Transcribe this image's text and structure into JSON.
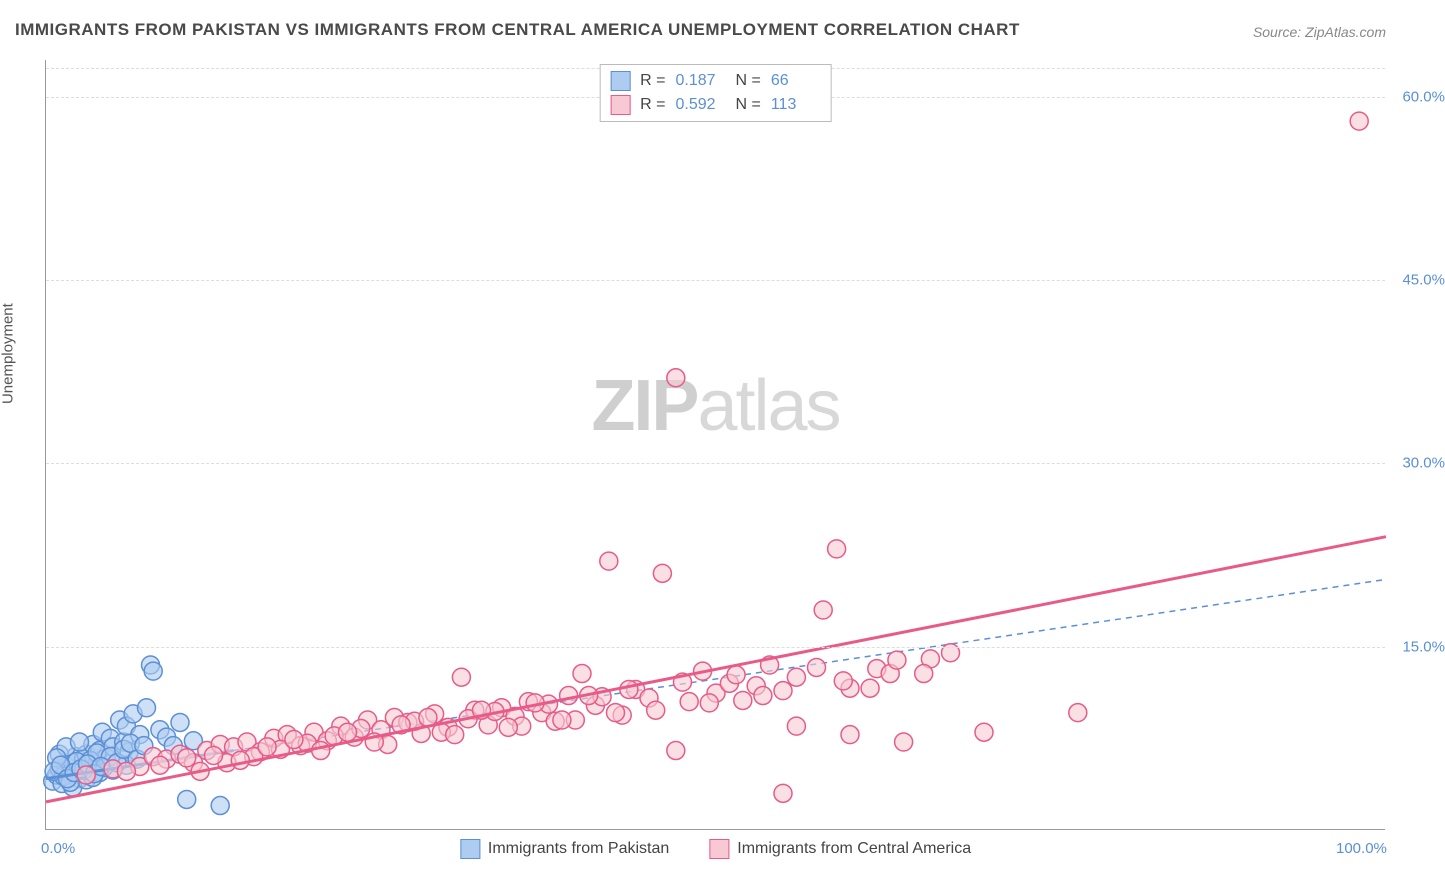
{
  "title": "IMMIGRANTS FROM PAKISTAN VS IMMIGRANTS FROM CENTRAL AMERICA UNEMPLOYMENT CORRELATION CHART",
  "source": "Source: ZipAtlas.com",
  "yaxis_label": "Unemployment",
  "watermark_zip": "ZIP",
  "watermark_atlas": "atlas",
  "chart": {
    "type": "scatter",
    "xlim": [
      0,
      100
    ],
    "ylim": [
      0,
      63
    ],
    "xticks": [
      {
        "value": 0,
        "label": "0.0%"
      },
      {
        "value": 100,
        "label": "100.0%"
      }
    ],
    "yticks": [
      {
        "value": 15,
        "label": "15.0%"
      },
      {
        "value": 30,
        "label": "30.0%"
      },
      {
        "value": 45,
        "label": "45.0%"
      },
      {
        "value": 60,
        "label": "60.0%"
      }
    ],
    "grid_color": "#dddddd",
    "background_color": "#ffffff",
    "marker_radius": 9,
    "marker_stroke_width": 1.5,
    "line_width_solid": 3,
    "line_width_dashed": 1.5,
    "series": [
      {
        "name": "Immigrants from Pakistan",
        "fill_color": "#aecbf0",
        "stroke_color": "#5b8fd6",
        "fill_opacity": 0.6,
        "R": "0.187",
        "N": "66",
        "trend_solid": {
          "x1": 0,
          "y1": 4.2,
          "x2": 14,
          "y2": 6.5
        },
        "trend_dashed": {
          "x1": 14,
          "y1": 6.5,
          "x2": 100,
          "y2": 20.5
        },
        "points": [
          [
            0.5,
            4
          ],
          [
            0.8,
            4.5
          ],
          [
            1,
            5
          ],
          [
            1.2,
            3.8
          ],
          [
            1.5,
            5.2
          ],
          [
            1.8,
            4.6
          ],
          [
            2,
            5.5
          ],
          [
            2.2,
            6
          ],
          [
            2.5,
            4.2
          ],
          [
            2.8,
            5.8
          ],
          [
            3,
            6.2
          ],
          [
            3.2,
            4.8
          ],
          [
            3.5,
            7
          ],
          [
            3.8,
            5.4
          ],
          [
            4,
            6.5
          ],
          [
            4.2,
            8
          ],
          [
            4.5,
            5.9
          ],
          [
            4.8,
            7.5
          ],
          [
            5,
            6.8
          ],
          [
            5.5,
            9
          ],
          [
            5.8,
            7.2
          ],
          [
            6,
            8.5
          ],
          [
            6.2,
            6.4
          ],
          [
            6.5,
            9.5
          ],
          [
            7,
            7.8
          ],
          [
            7.5,
            10
          ],
          [
            7.8,
            13.5
          ],
          [
            8,
            13
          ],
          [
            8.5,
            8.2
          ],
          [
            9,
            7.6
          ],
          [
            9.5,
            6.9
          ],
          [
            10,
            8.8
          ],
          [
            10.5,
            2.5
          ],
          [
            11,
            7.3
          ],
          [
            2,
            3.5
          ],
          [
            3,
            4.1
          ],
          [
            4,
            4.7
          ],
          [
            1,
            6.2
          ],
          [
            1.5,
            6.8
          ],
          [
            2.5,
            7.2
          ],
          [
            3.5,
            4.3
          ],
          [
            5,
            4.9
          ],
          [
            6,
            5.3
          ],
          [
            0.8,
            5.9
          ],
          [
            1.3,
            4.4
          ],
          [
            1.8,
            3.9
          ],
          [
            2.3,
            5.6
          ],
          [
            2.8,
            4.9
          ],
          [
            3.3,
            5.7
          ],
          [
            3.8,
            6.3
          ],
          [
            4.3,
            5.1
          ],
          [
            4.8,
            6.0
          ],
          [
            5.3,
            5.5
          ],
          [
            5.8,
            6.6
          ],
          [
            6.3,
            7.1
          ],
          [
            6.8,
            5.8
          ],
          [
            7.3,
            6.9
          ],
          [
            0.6,
            4.8
          ],
          [
            1.1,
            5.3
          ],
          [
            1.6,
            4.2
          ],
          [
            2.1,
            4.7
          ],
          [
            2.6,
            5.0
          ],
          [
            3.1,
            5.4
          ],
          [
            13,
            2.0
          ],
          [
            3.6,
            4.6
          ],
          [
            4.1,
            5.2
          ]
        ]
      },
      {
        "name": "Immigrants from Central America",
        "fill_color": "#f7c9d4",
        "stroke_color": "#e85b88",
        "fill_opacity": 0.6,
        "R": "0.592",
        "N": "113",
        "trend_solid": {
          "x1": 0,
          "y1": 2.3,
          "x2": 100,
          "y2": 24
        },
        "trend_dashed": null,
        "points": [
          [
            3,
            4.5
          ],
          [
            5,
            5
          ],
          [
            7,
            5.2
          ],
          [
            8,
            6
          ],
          [
            9,
            5.8
          ],
          [
            10,
            6.2
          ],
          [
            11,
            5.5
          ],
          [
            12,
            6.5
          ],
          [
            13,
            7
          ],
          [
            14,
            6.8
          ],
          [
            15,
            7.2
          ],
          [
            16,
            6.4
          ],
          [
            17,
            7.5
          ],
          [
            18,
            7.8
          ],
          [
            19,
            6.9
          ],
          [
            20,
            8
          ],
          [
            21,
            7.3
          ],
          [
            22,
            8.5
          ],
          [
            23,
            7.6
          ],
          [
            24,
            9
          ],
          [
            25,
            8.2
          ],
          [
            26,
            9.2
          ],
          [
            27,
            8.8
          ],
          [
            28,
            7.9
          ],
          [
            29,
            9.5
          ],
          [
            30,
            8.4
          ],
          [
            31,
            12.5
          ],
          [
            32,
            9.8
          ],
          [
            33,
            8.6
          ],
          [
            34,
            10
          ],
          [
            35,
            9.3
          ],
          [
            36,
            10.5
          ],
          [
            37,
            9.6
          ],
          [
            38,
            8.9
          ],
          [
            39,
            11
          ],
          [
            40,
            12.8
          ],
          [
            41,
            10.2
          ],
          [
            42,
            22
          ],
          [
            43,
            9.4
          ],
          [
            44,
            11.5
          ],
          [
            45,
            10.8
          ],
          [
            46,
            21
          ],
          [
            47,
            37
          ],
          [
            48,
            10.5
          ],
          [
            49,
            13
          ],
          [
            50,
            11.2
          ],
          [
            47,
            6.5
          ],
          [
            51,
            12
          ],
          [
            52,
            10.6
          ],
          [
            53,
            11.8
          ],
          [
            54,
            13.5
          ],
          [
            55,
            11.4
          ],
          [
            56,
            12.5
          ],
          [
            58,
            18
          ],
          [
            59,
            23
          ],
          [
            60,
            11.6
          ],
          [
            62,
            13.2
          ],
          [
            63,
            12.8
          ],
          [
            64,
            7.2
          ],
          [
            55,
            3.0
          ],
          [
            66,
            14
          ],
          [
            77,
            9.6
          ],
          [
            70,
            8
          ],
          [
            60,
            7.8
          ],
          [
            56,
            8.5
          ],
          [
            11.5,
            4.8
          ],
          [
            13.5,
            5.5
          ],
          [
            15.5,
            6.0
          ],
          [
            17.5,
            6.6
          ],
          [
            19.5,
            7.1
          ],
          [
            21.5,
            7.7
          ],
          [
            23.5,
            8.3
          ],
          [
            25.5,
            7.0
          ],
          [
            27.5,
            8.9
          ],
          [
            29.5,
            8.0
          ],
          [
            31.5,
            9.1
          ],
          [
            33.5,
            9.7
          ],
          [
            35.5,
            8.5
          ],
          [
            37.5,
            10.3
          ],
          [
            39.5,
            9.0
          ],
          [
            41.5,
            10.9
          ],
          [
            43.5,
            11.5
          ],
          [
            45.5,
            9.8
          ],
          [
            47.5,
            12.1
          ],
          [
            49.5,
            10.4
          ],
          [
            51.5,
            12.7
          ],
          [
            53.5,
            11.0
          ],
          [
            57.5,
            13.3
          ],
          [
            59.5,
            12.2
          ],
          [
            61.5,
            11.6
          ],
          [
            63.5,
            13.9
          ],
          [
            65.5,
            12.8
          ],
          [
            67.5,
            14.5
          ],
          [
            6,
            4.8
          ],
          [
            8.5,
            5.3
          ],
          [
            10.5,
            5.9
          ],
          [
            12.5,
            6.1
          ],
          [
            14.5,
            5.7
          ],
          [
            16.5,
            6.8
          ],
          [
            18.5,
            7.4
          ],
          [
            20.5,
            6.5
          ],
          [
            22.5,
            8.0
          ],
          [
            24.5,
            7.2
          ],
          [
            26.5,
            8.6
          ],
          [
            28.5,
            9.2
          ],
          [
            30.5,
            7.8
          ],
          [
            32.5,
            9.8
          ],
          [
            34.5,
            8.4
          ],
          [
            36.5,
            10.4
          ],
          [
            38.5,
            9.0
          ],
          [
            40.5,
            11.0
          ],
          [
            42.5,
            9.6
          ],
          [
            98,
            58
          ]
        ]
      }
    ]
  },
  "legend": {
    "items": [
      {
        "label": "Immigrants from Pakistan",
        "fill": "#aecbf0",
        "stroke": "#5b8fd6"
      },
      {
        "label": "Immigrants from Central America",
        "fill": "#f7c9d4",
        "stroke": "#e85b88"
      }
    ]
  }
}
